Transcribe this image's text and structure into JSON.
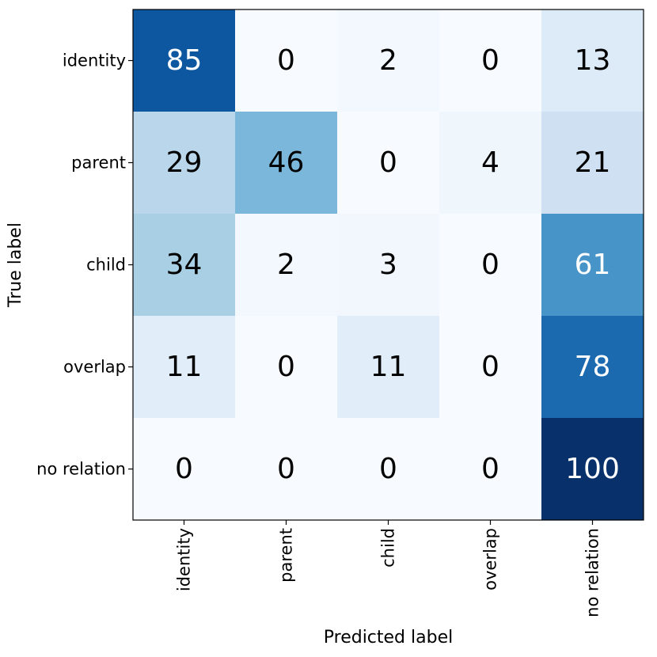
{
  "chart_data": {
    "type": "heatmap",
    "title": "",
    "xlabel": "Predicted label",
    "ylabel": "True label",
    "x_categories": [
      "identity",
      "parent",
      "child",
      "overlap",
      "no relation"
    ],
    "y_categories": [
      "identity",
      "parent",
      "child",
      "overlap",
      "no relation"
    ],
    "values": [
      [
        85,
        0,
        2,
        0,
        13
      ],
      [
        29,
        46,
        0,
        4,
        21
      ],
      [
        34,
        2,
        3,
        0,
        61
      ],
      [
        11,
        0,
        11,
        0,
        78
      ],
      [
        0,
        0,
        0,
        0,
        100
      ]
    ],
    "value_range": [
      0,
      100
    ],
    "colormap": "Blues",
    "colorbar": false,
    "grid": false
  }
}
